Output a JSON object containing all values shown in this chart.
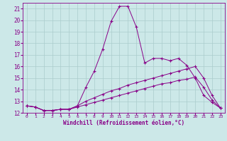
{
  "xlabel": "Windchill (Refroidissement éolien,°C)",
  "bg_color": "#cce8e8",
  "grid_color": "#aacccc",
  "line_color": "#880088",
  "xlim": [
    -0.5,
    23.5
  ],
  "ylim": [
    12,
    21.5
  ],
  "xticks": [
    0,
    1,
    2,
    3,
    4,
    5,
    6,
    7,
    8,
    9,
    10,
    11,
    12,
    13,
    14,
    15,
    16,
    17,
    18,
    19,
    20,
    21,
    22,
    23
  ],
  "yticks": [
    12,
    13,
    14,
    15,
    16,
    17,
    18,
    19,
    20,
    21
  ],
  "line1_x": [
    0,
    1,
    2,
    3,
    4,
    5,
    6,
    7,
    8,
    9,
    10,
    11,
    12,
    13,
    14,
    15,
    16,
    17,
    18,
    19,
    20,
    21,
    22,
    23
  ],
  "line1_y": [
    12.6,
    12.5,
    12.2,
    12.2,
    12.3,
    12.3,
    12.6,
    14.2,
    15.6,
    17.5,
    19.9,
    21.2,
    21.2,
    19.4,
    16.3,
    16.7,
    16.7,
    16.5,
    16.7,
    16.1,
    15.0,
    13.5,
    12.9,
    12.4
  ],
  "line2_x": [
    0,
    1,
    2,
    3,
    4,
    5,
    6,
    7,
    8,
    9,
    10,
    11,
    12,
    13,
    14,
    15,
    16,
    17,
    18,
    19,
    20,
    21,
    22,
    23
  ],
  "line2_y": [
    12.6,
    12.5,
    12.2,
    12.2,
    12.3,
    12.3,
    12.6,
    13.0,
    13.3,
    13.6,
    13.9,
    14.1,
    14.4,
    14.6,
    14.8,
    15.0,
    15.2,
    15.4,
    15.6,
    15.8,
    16.0,
    15.0,
    13.5,
    12.4
  ],
  "line3_x": [
    0,
    1,
    2,
    3,
    4,
    5,
    6,
    7,
    8,
    9,
    10,
    11,
    12,
    13,
    14,
    15,
    16,
    17,
    18,
    19,
    20,
    21,
    22,
    23
  ],
  "line3_y": [
    12.6,
    12.5,
    12.2,
    12.2,
    12.3,
    12.3,
    12.5,
    12.7,
    12.9,
    13.1,
    13.3,
    13.5,
    13.7,
    13.9,
    14.1,
    14.3,
    14.5,
    14.6,
    14.8,
    14.9,
    15.1,
    14.2,
    13.1,
    12.4
  ]
}
